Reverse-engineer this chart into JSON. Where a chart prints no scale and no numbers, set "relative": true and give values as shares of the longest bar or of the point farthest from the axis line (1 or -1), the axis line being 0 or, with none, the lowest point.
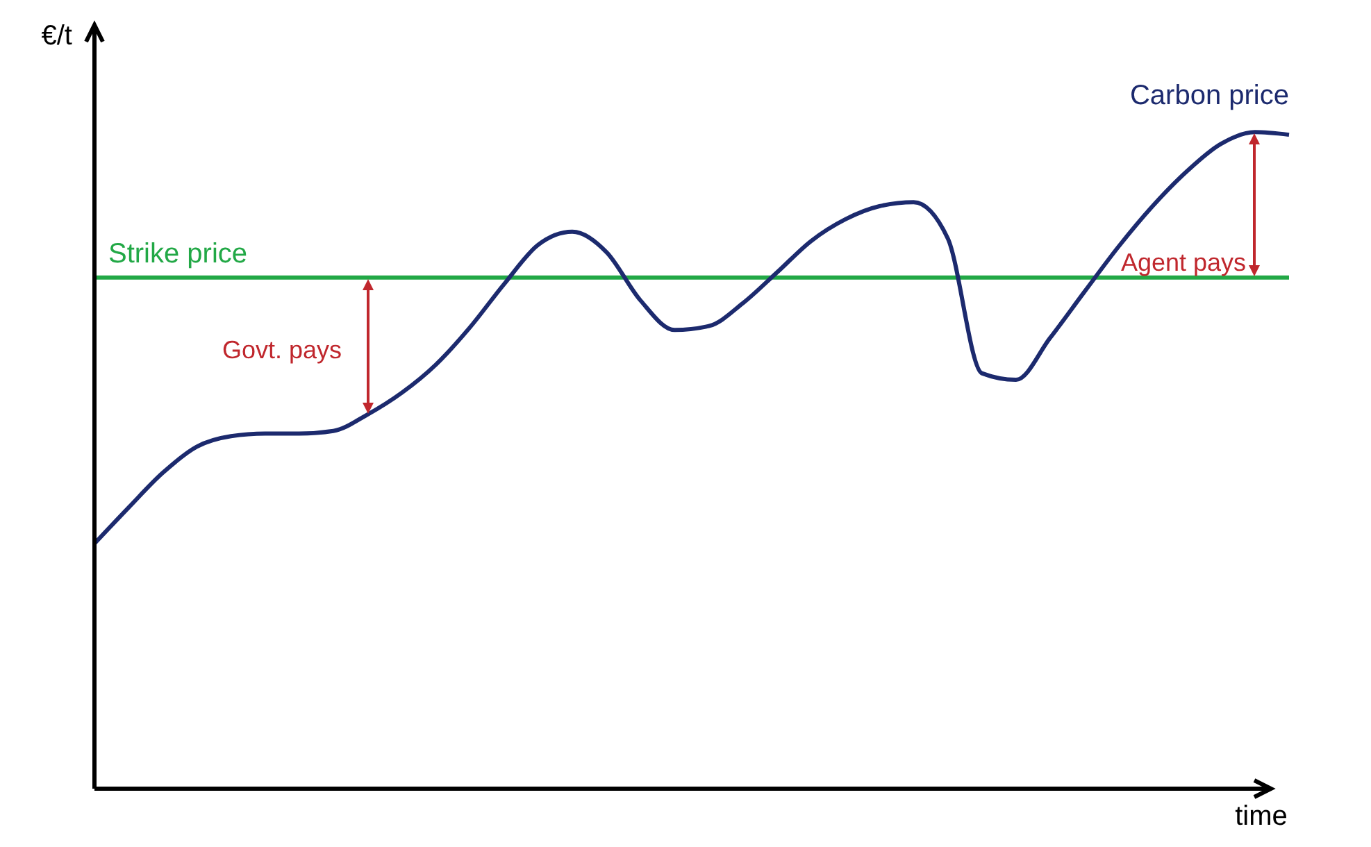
{
  "chart_data": {
    "type": "line",
    "relative": true,
    "xlabel": "time",
    "ylabel": "€/t",
    "marker": "none",
    "legend": false,
    "grid": false,
    "categories": [
      null,
      null,
      null,
      null,
      null,
      null,
      null,
      null,
      null,
      null,
      null,
      null,
      null,
      null,
      null,
      null,
      null,
      null,
      null,
      null,
      null,
      null,
      null,
      null,
      null,
      null,
      null,
      null,
      null,
      null,
      null,
      null,
      null,
      null,
      null,
      null
    ],
    "series": [
      {
        "name": "Carbon price",
        "color": "#1c2a6e",
        "values": [
          0.372,
          0.427,
          0.48,
          0.52,
          0.536,
          0.54,
          0.54,
          0.544,
          0.569,
          0.602,
          0.645,
          0.702,
          0.768,
          0.828,
          0.848,
          0.817,
          0.743,
          0.698,
          0.704,
          0.739,
          0.786,
          0.834,
          0.867,
          0.887,
          0.893,
          0.838,
          0.632,
          0.622,
          0.686,
          0.756,
          0.825,
          0.887,
          0.94,
          0.982,
          1,
          0.996
        ]
      }
    ],
    "ref_lines": [
      {
        "axis": "y",
        "value": 0.778,
        "label": "Strike price",
        "color": "#22a846"
      }
    ],
    "annotations": [
      "Govt. pays",
      "Agent pays"
    ]
  }
}
